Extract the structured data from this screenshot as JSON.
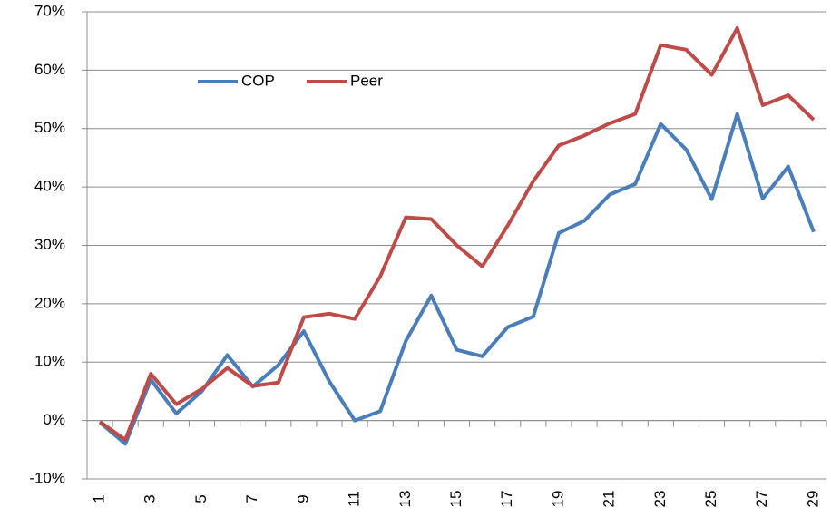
{
  "chart_data": {
    "type": "line",
    "categories": [
      "1",
      null,
      "3",
      null,
      "5",
      null,
      "7",
      null,
      "9",
      null,
      "11",
      null,
      "13",
      null,
      "15",
      null,
      "17",
      null,
      "19",
      null,
      "21",
      null,
      "23",
      null,
      "25",
      null,
      "27",
      null,
      "29"
    ],
    "series": [
      {
        "name": "COP",
        "color": "#4a7ebb",
        "values": [
          -0.3,
          -4,
          7,
          1.2,
          5,
          11.2,
          5.8,
          9.5,
          15.3,
          6.7,
          0,
          1.6,
          13.6,
          21.4,
          12.1,
          11,
          16,
          17.8,
          32.1,
          34.2,
          38.7,
          40.5,
          50.8,
          46.4,
          37.9,
          52.5,
          38,
          43.5,
          32.3
        ]
      },
      {
        "name": "Peer",
        "color": "#be4b48",
        "values": [
          -0.2,
          -3.3,
          8,
          2.8,
          5.4,
          9,
          5.9,
          6.5,
          17.7,
          18.3,
          17.4,
          24.7,
          34.8,
          34.5,
          30,
          26.4,
          33.4,
          41,
          47.1,
          48.8,
          50.9,
          52.5,
          64.3,
          63.5,
          59.2,
          67.2,
          54,
          55.7,
          51.5
        ]
      }
    ],
    "ylim": [
      -10,
      70
    ],
    "yticks": [
      {
        "value": -10,
        "label": "-10%"
      },
      {
        "value": 0,
        "label": "0%"
      },
      {
        "value": 10,
        "label": "10%"
      },
      {
        "value": 20,
        "label": "20%"
      },
      {
        "value": 30,
        "label": "30%"
      },
      {
        "value": 40,
        "label": "40%"
      },
      {
        "value": 50,
        "label": "50%"
      },
      {
        "value": 60,
        "label": "60%"
      },
      {
        "value": 70,
        "label": "70%"
      }
    ],
    "grid": true
  }
}
